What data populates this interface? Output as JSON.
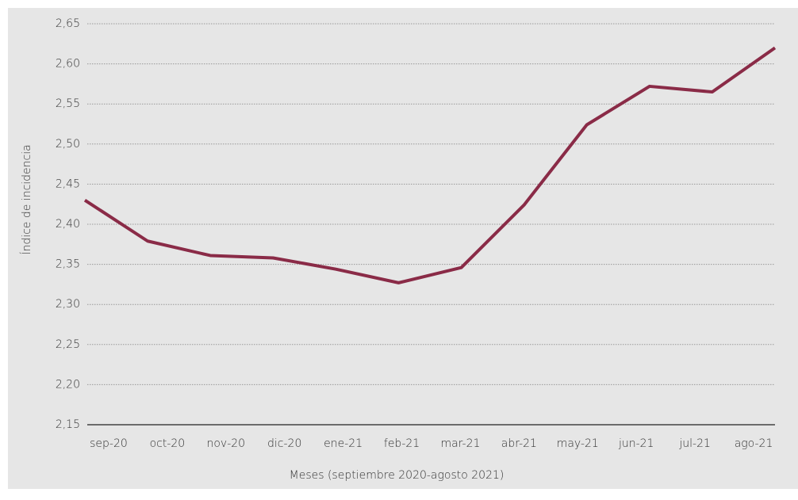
{
  "chart_data": {
    "type": "line",
    "x_label": "Meses (septiembre 2020-agosto 2021)",
    "y_label": "Índice de incidencia",
    "categories": [
      "sep-20",
      "oct-20",
      "nov-20",
      "dic-20",
      "ene-21",
      "feb-21",
      "mar-21",
      "abr-21",
      "may-21",
      "jun-21",
      "jul-21",
      "ago-21"
    ],
    "series": [
      {
        "name": "Índice de incidencia",
        "color": "#8a2b47",
        "values": [
          2.43,
          2.379,
          2.361,
          2.358,
          2.344,
          2.327,
          2.346,
          2.424,
          2.524,
          2.572,
          2.565,
          2.62
        ]
      }
    ],
    "ylim": [
      2.15,
      2.65
    ],
    "yticks": [
      {
        "value": 2.15,
        "label": "2,15"
      },
      {
        "value": 2.2,
        "label": "2,20"
      },
      {
        "value": 2.25,
        "label": "2,25"
      },
      {
        "value": 2.3,
        "label": "2,30"
      },
      {
        "value": 2.35,
        "label": "2,35"
      },
      {
        "value": 2.4,
        "label": "2,40"
      },
      {
        "value": 2.45,
        "label": "2,45"
      },
      {
        "value": 2.5,
        "label": "2,50"
      },
      {
        "value": 2.55,
        "label": "2,55"
      },
      {
        "value": 2.6,
        "label": "2,60"
      },
      {
        "value": 2.65,
        "label": "2,65"
      }
    ],
    "grid": true
  }
}
